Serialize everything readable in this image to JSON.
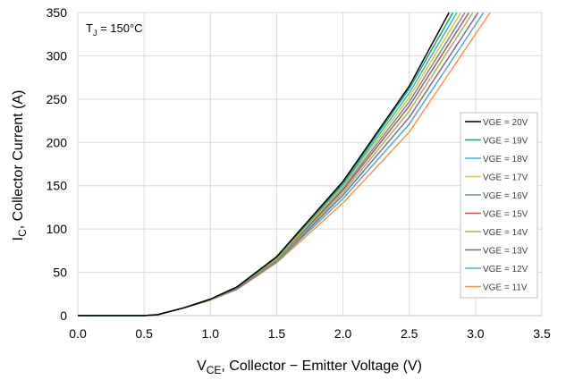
{
  "chart_data": {
    "type": "line",
    "annotation": {
      "main": "T",
      "sub": "J",
      "rest": " = 150°C"
    },
    "xlabel": {
      "main": "V",
      "sub": "CE",
      "rest": ", Collector − Emitter Voltage (V)"
    },
    "ylabel": {
      "main": "I",
      "sub": "C",
      "rest": ", Collector Current (A)"
    },
    "xlim": [
      0,
      3.5
    ],
    "ylim": [
      0,
      350
    ],
    "xticks": [
      "0.0",
      "0.5",
      "1.0",
      "1.5",
      "2.0",
      "2.5",
      "3.0",
      "3.5"
    ],
    "yticks": [
      "0",
      "50",
      "100",
      "150",
      "200",
      "250",
      "300",
      "350"
    ],
    "grid": true,
    "legend_position": "right",
    "series": [
      {
        "name": "VGE = 20V",
        "color": "#000000",
        "points": [
          [
            0,
            0
          ],
          [
            0.5,
            0
          ],
          [
            0.6,
            1
          ],
          [
            0.8,
            9
          ],
          [
            1.0,
            19
          ],
          [
            1.2,
            33
          ],
          [
            1.5,
            68
          ],
          [
            2.0,
            155
          ],
          [
            2.5,
            265
          ],
          [
            2.8,
            350
          ]
        ]
      },
      {
        "name": "VGE = 19V",
        "color": "#1aa56a",
        "points": [
          [
            0,
            0
          ],
          [
            0.5,
            0
          ],
          [
            0.6,
            1
          ],
          [
            0.8,
            9
          ],
          [
            1.0,
            19
          ],
          [
            1.2,
            33
          ],
          [
            1.5,
            67
          ],
          [
            2.0,
            153
          ],
          [
            2.5,
            262
          ],
          [
            2.83,
            350
          ]
        ]
      },
      {
        "name": "VGE = 18V",
        "color": "#33b6d6",
        "points": [
          [
            0,
            0
          ],
          [
            0.5,
            0
          ],
          [
            0.6,
            1
          ],
          [
            0.8,
            9
          ],
          [
            1.0,
            19
          ],
          [
            1.2,
            33
          ],
          [
            1.5,
            67
          ],
          [
            2.0,
            151
          ],
          [
            2.5,
            257
          ],
          [
            2.86,
            350
          ]
        ]
      },
      {
        "name": "VGE = 17V",
        "color": "#f2c313",
        "points": [
          [
            0,
            0
          ],
          [
            0.5,
            0
          ],
          [
            0.6,
            1
          ],
          [
            0.8,
            9
          ],
          [
            1.0,
            19
          ],
          [
            1.2,
            33
          ],
          [
            1.5,
            66
          ],
          [
            2.0,
            149
          ],
          [
            2.5,
            252
          ],
          [
            2.89,
            350
          ]
        ]
      },
      {
        "name": "VGE = 16V",
        "color": "#5b8ec7",
        "points": [
          [
            0,
            0
          ],
          [
            0.5,
            0
          ],
          [
            0.6,
            1
          ],
          [
            0.8,
            9
          ],
          [
            1.0,
            19
          ],
          [
            1.2,
            32
          ],
          [
            1.5,
            66
          ],
          [
            2.0,
            147
          ],
          [
            2.5,
            247
          ],
          [
            2.92,
            350
          ]
        ]
      },
      {
        "name": "VGE = 15V",
        "color": "#c0504d",
        "points": [
          [
            0,
            0
          ],
          [
            0.5,
            0
          ],
          [
            0.6,
            1
          ],
          [
            0.8,
            9
          ],
          [
            1.0,
            19
          ],
          [
            1.2,
            32
          ],
          [
            1.5,
            65
          ],
          [
            2.0,
            145
          ],
          [
            2.5,
            242
          ],
          [
            2.95,
            350
          ]
        ]
      },
      {
        "name": "VGE = 14V",
        "color": "#9bbb59",
        "points": [
          [
            0,
            0
          ],
          [
            0.5,
            0
          ],
          [
            0.6,
            1
          ],
          [
            0.8,
            9
          ],
          [
            1.0,
            18
          ],
          [
            1.2,
            32
          ],
          [
            1.5,
            64
          ],
          [
            2.0,
            142
          ],
          [
            2.5,
            236
          ],
          [
            2.98,
            350
          ]
        ]
      },
      {
        "name": "VGE = 13V",
        "color": "#8064a2",
        "points": [
          [
            0,
            0
          ],
          [
            0.5,
            0
          ],
          [
            0.6,
            1
          ],
          [
            0.8,
            9
          ],
          [
            1.0,
            18
          ],
          [
            1.2,
            31
          ],
          [
            1.5,
            63
          ],
          [
            2.0,
            139
          ],
          [
            2.5,
            229
          ],
          [
            3.02,
            350
          ]
        ]
      },
      {
        "name": "VGE = 12V",
        "color": "#4bacc6",
        "points": [
          [
            0,
            0
          ],
          [
            0.5,
            0
          ],
          [
            0.6,
            1
          ],
          [
            0.8,
            9
          ],
          [
            1.0,
            18
          ],
          [
            1.2,
            31
          ],
          [
            1.5,
            62
          ],
          [
            2.0,
            135
          ],
          [
            2.5,
            221
          ],
          [
            3.06,
            350
          ]
        ]
      },
      {
        "name": "VGE = 11V",
        "color": "#f79646",
        "points": [
          [
            0,
            0
          ],
          [
            0.5,
            0
          ],
          [
            0.6,
            1
          ],
          [
            0.8,
            9
          ],
          [
            1.0,
            18
          ],
          [
            1.2,
            30
          ],
          [
            1.5,
            61
          ],
          [
            2.0,
            130
          ],
          [
            2.5,
            212
          ],
          [
            3.11,
            350
          ]
        ]
      }
    ]
  }
}
